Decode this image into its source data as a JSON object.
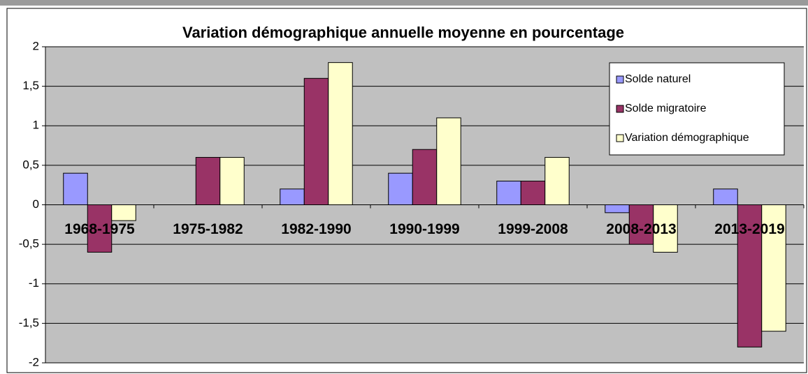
{
  "chart_data": {
    "type": "bar",
    "title": "Variation démographique annuelle moyenne en pourcentage",
    "categories": [
      "1968-1975",
      "1975-1982",
      "1982-1990",
      "1990-1999",
      "1999-2008",
      "2008-2013",
      "2013-2019"
    ],
    "series": [
      {
        "name": "Solde naturel",
        "color": "#9999ff",
        "values": [
          0.4,
          0,
          0.2,
          0.4,
          0.3,
          -0.1,
          0.2
        ]
      },
      {
        "name": "Solde migratoire",
        "color": "#993366",
        "values": [
          -0.6,
          0.6,
          1.6,
          0.7,
          0.3,
          -0.5,
          -1.8
        ]
      },
      {
        "name": "Variation démographique",
        "color": "#ffffcc",
        "values": [
          -0.2,
          0.6,
          1.8,
          1.1,
          0.6,
          -0.6,
          -1.6
        ]
      }
    ],
    "ylim": [
      -2,
      2
    ],
    "yticks": [
      -2,
      {
        "value": -1.5,
        "label": "-1,5"
      },
      -1,
      {
        "value": -0.5,
        "label": "-0,5"
      },
      0,
      {
        "value": 0.5,
        "label": "0,5"
      },
      1,
      {
        "value": 1.5,
        "label": "1,5"
      },
      2
    ],
    "grid": true,
    "legend": "upper right"
  }
}
